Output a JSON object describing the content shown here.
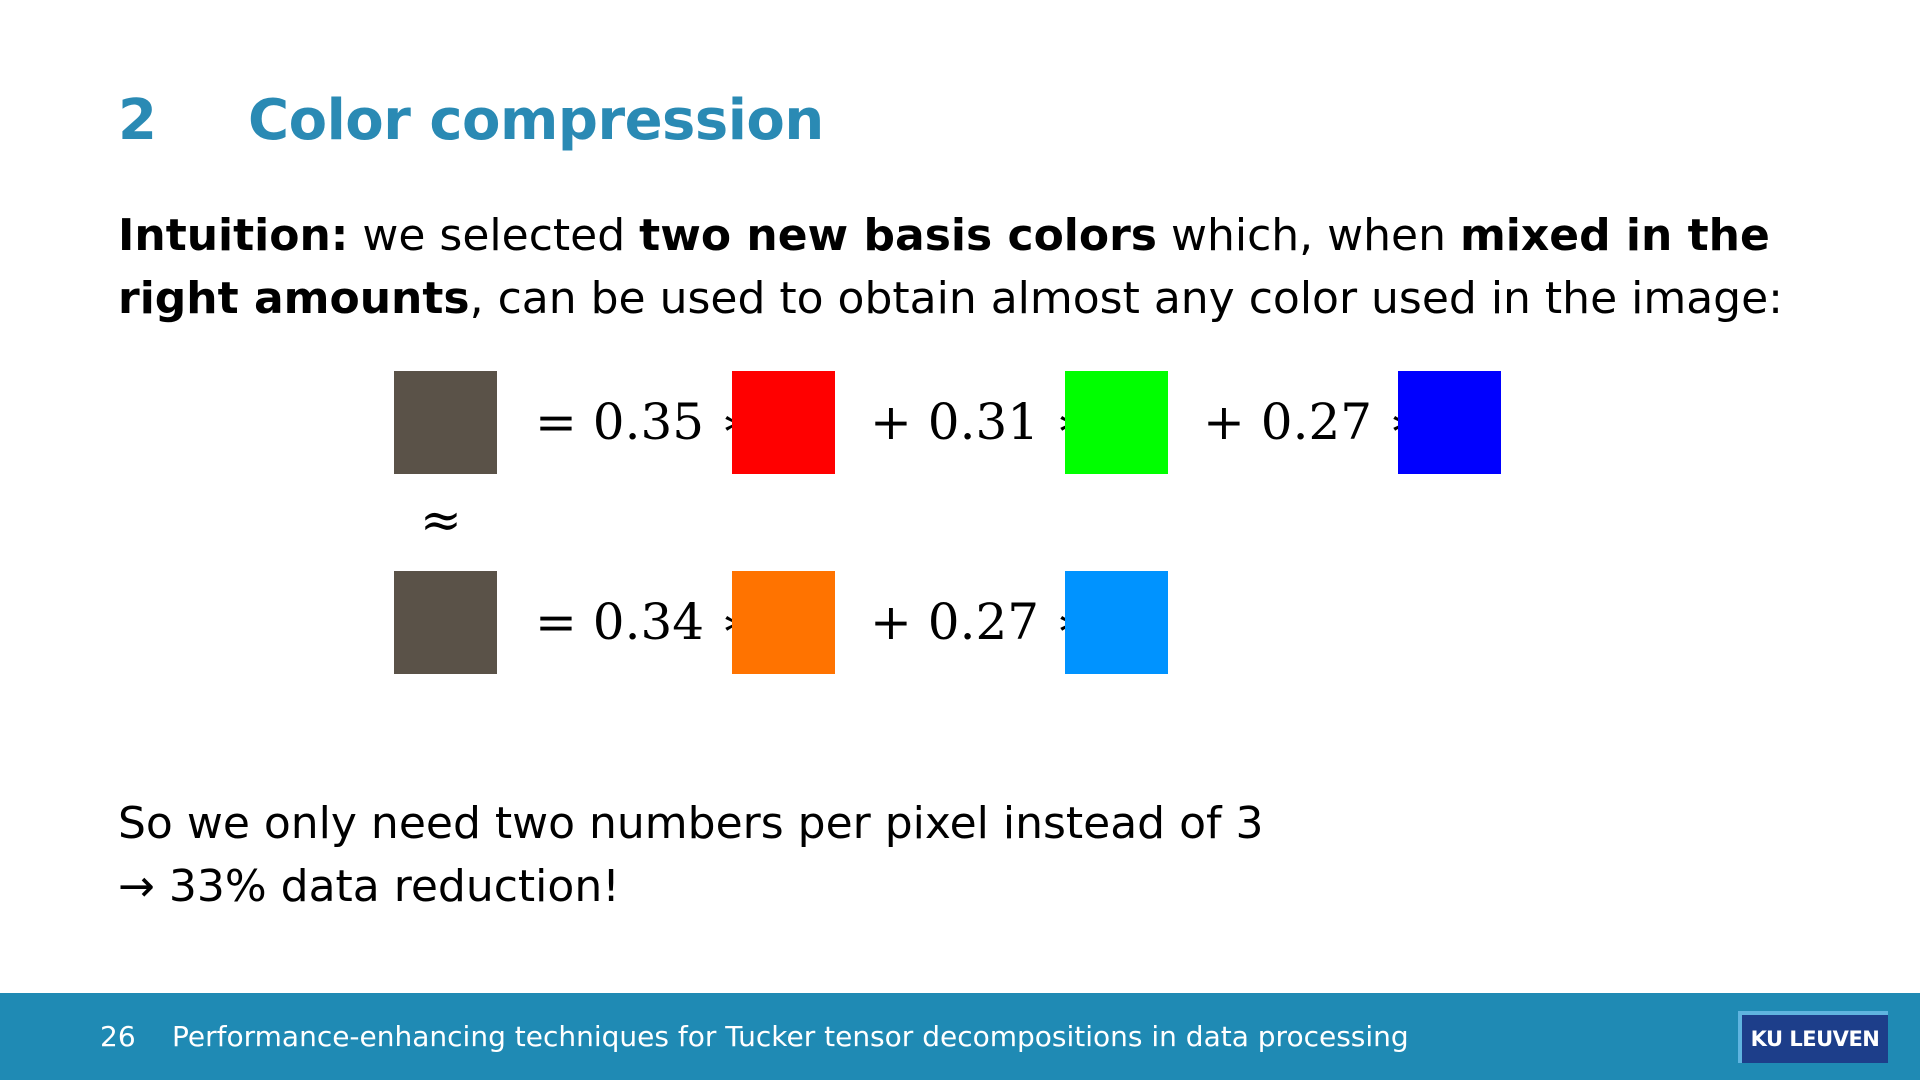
{
  "title": {
    "number": "2",
    "text": "Color compression"
  },
  "intro": {
    "intuition_label": "Intuition:",
    "part1": " we selected ",
    "bold1": "two new basis colors",
    "part2": " which, when ",
    "bold2": "mixed in the",
    "bold3": "right amounts",
    "part3": ", can be used to obtain almost any color used in the image:"
  },
  "equation": {
    "approx_symbol": "≈",
    "row1": {
      "result_color": "#5a5248",
      "terms": [
        {
          "op": "= 0.35 ∗",
          "color": "#ff0000"
        },
        {
          "op": "+ 0.31 ∗",
          "color": "#00ff00"
        },
        {
          "op": "+ 0.27 ∗",
          "color": "#0000ff"
        }
      ]
    },
    "row2": {
      "result_color": "#5a5248",
      "terms": [
        {
          "op": "= 0.34 ∗",
          "color": "#ff7300"
        },
        {
          "op": "+ 0.27 ∗",
          "color": "#0093ff"
        }
      ]
    }
  },
  "conclusion": {
    "line1": "So we only need two numbers per pixel instead of 3",
    "line2": "→ 33% data reduction!"
  },
  "footer": {
    "page_number": "26",
    "title": "Performance-enhancing techniques for Tucker tensor decompositions in data processing",
    "logo_text": "KU LEUVEN",
    "background_color": "#1f8ab4"
  },
  "colors": {
    "title": "#2a8ab4"
  }
}
